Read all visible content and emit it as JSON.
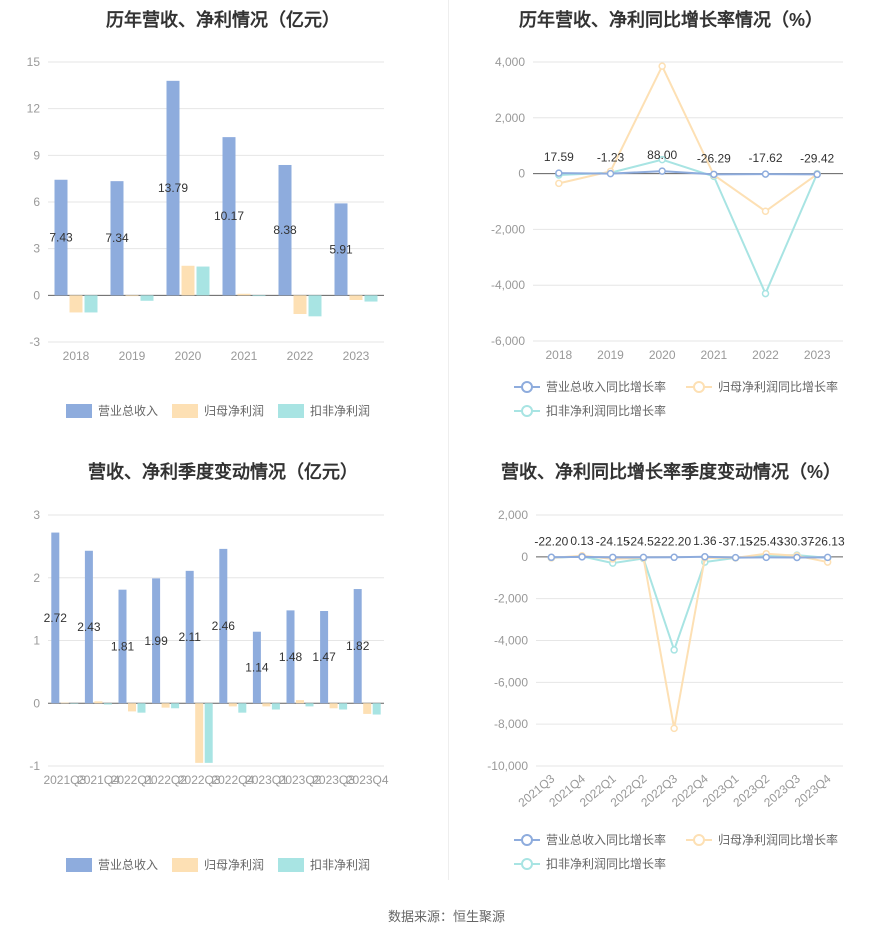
{
  "footer": {
    "source": "数据来源：恒生聚源"
  },
  "chart_data": [
    {
      "id": "annual_revenue_profit",
      "type": "bar",
      "title": "历年营收、净利情况（亿元）",
      "categories": [
        "2018",
        "2019",
        "2020",
        "2021",
        "2022",
        "2023"
      ],
      "yticks": [
        -3,
        0,
        3,
        6,
        9,
        12,
        15
      ],
      "ylim": [
        -3,
        15
      ],
      "series": [
        {
          "name": "营业总收入",
          "color": "#8eacdd",
          "values": [
            7.43,
            7.34,
            13.79,
            10.17,
            8.38,
            5.91
          ],
          "labels": [
            "7.43",
            "7.34",
            "13.79",
            "10.17",
            "8.38",
            "5.91"
          ]
        },
        {
          "name": "归母净利润",
          "color": "#fde0b4",
          "values": [
            -1.1,
            -0.05,
            1.9,
            0.1,
            -1.2,
            -0.3
          ]
        },
        {
          "name": "扣非净利润",
          "color": "#a8e4e3",
          "values": [
            -1.1,
            -0.35,
            1.85,
            -0.05,
            -1.35,
            -0.4
          ]
        }
      ],
      "legend": "bottom"
    },
    {
      "id": "annual_growth",
      "type": "line",
      "title": "历年营收、净利同比增长率情况（%）",
      "categories": [
        "2018",
        "2019",
        "2020",
        "2021",
        "2022",
        "2023"
      ],
      "yticks": [
        -6000,
        -4000,
        -2000,
        0,
        2000,
        4000
      ],
      "ytick_labels": [
        "-6,000",
        "-4,000",
        "-2,000",
        "0",
        "2,000",
        "4,000"
      ],
      "ylim": [
        -6000,
        4000
      ],
      "series": [
        {
          "name": "营业总收入同比增长率",
          "color": "#8eacdd",
          "values": [
            17.59,
            -1.23,
            88.0,
            -26.29,
            -17.62,
            -29.42
          ],
          "labels": [
            "17.59",
            "-1.23",
            "88.00",
            "-26.29",
            "-17.62",
            "-29.42"
          ]
        },
        {
          "name": "归母净利润同比增长率",
          "color": "#fde0b4",
          "values": [
            -350,
            80,
            3850,
            -50,
            -1350,
            -20
          ]
        },
        {
          "name": "扣非净利润同比增长率",
          "color": "#a8e4e3",
          "values": [
            -50,
            30,
            500,
            -100,
            -4300,
            0
          ]
        }
      ],
      "legend": "bottom"
    },
    {
      "id": "quarterly_revenue_profit",
      "type": "bar",
      "title": "营收、净利季度变动情况（亿元）",
      "categories": [
        "2021Q3",
        "2021Q4",
        "2022Q1",
        "2022Q2",
        "2022Q3",
        "2022Q4",
        "2023Q1",
        "2023Q2",
        "2023Q3",
        "2023Q4"
      ],
      "yticks": [
        -1,
        0,
        1,
        2,
        3
      ],
      "ylim": [
        -1,
        3
      ],
      "series": [
        {
          "name": "营业总收入",
          "color": "#8eacdd",
          "values": [
            2.72,
            2.43,
            1.81,
            1.99,
            2.11,
            2.46,
            1.14,
            1.48,
            1.47,
            1.82
          ],
          "labels": [
            "2.72",
            "2.43",
            "1.81",
            "1.99",
            "2.11",
            "2.46",
            "1.14",
            "1.48",
            "1.47",
            "1.82"
          ]
        },
        {
          "name": "归母净利润",
          "color": "#fde0b4",
          "values": [
            0.01,
            0.03,
            -0.13,
            -0.07,
            -0.95,
            -0.05,
            -0.05,
            0.05,
            -0.08,
            -0.17
          ]
        },
        {
          "name": "扣非净利润",
          "color": "#a8e4e3",
          "values": [
            0.0,
            -0.02,
            -0.15,
            -0.08,
            -0.95,
            -0.15,
            -0.1,
            -0.05,
            -0.1,
            -0.18
          ]
        }
      ],
      "legend": "bottom"
    },
    {
      "id": "quarterly_growth",
      "type": "line",
      "title": "营收、净利同比增长率季度变动情况（%）",
      "categories": [
        "2021Q3",
        "2021Q4",
        "2022Q1",
        "2022Q2",
        "2022Q3",
        "2022Q4",
        "2023Q1",
        "2023Q2",
        "2023Q3",
        "2023Q4"
      ],
      "yticks": [
        -10000,
        -8000,
        -6000,
        -4000,
        -2000,
        0,
        2000
      ],
      "ytick_labels": [
        "-10,000",
        "-8,000",
        "-6,000",
        "-4,000",
        "-2,000",
        "0",
        "2,000"
      ],
      "ylim": [
        -10000,
        2000
      ],
      "series": [
        {
          "name": "营业总收入同比增长率",
          "color": "#8eacdd",
          "values": [
            -22.2,
            0.13,
            -24.15,
            -24.52,
            -22.2,
            1.36,
            -37.15,
            -25.43,
            -30.37,
            -26.13
          ],
          "labels": [
            "-22.20",
            "0.13",
            "-24.15",
            "-24.52",
            "-22.20",
            "1.36",
            "-37.15",
            "-25.43",
            "-30.37",
            "-26.13"
          ]
        },
        {
          "name": "归母净利润同比增长率",
          "color": "#fde0b4",
          "values": [
            -50,
            50,
            -100,
            -50,
            -8200,
            -50,
            -50,
            150,
            50,
            -250
          ]
        },
        {
          "name": "扣非净利润同比增长率",
          "color": "#a8e4e3",
          "values": [
            -50,
            20,
            -300,
            -80,
            -4450,
            -250,
            -50,
            50,
            80,
            -50
          ]
        }
      ],
      "legend": "bottom"
    }
  ]
}
